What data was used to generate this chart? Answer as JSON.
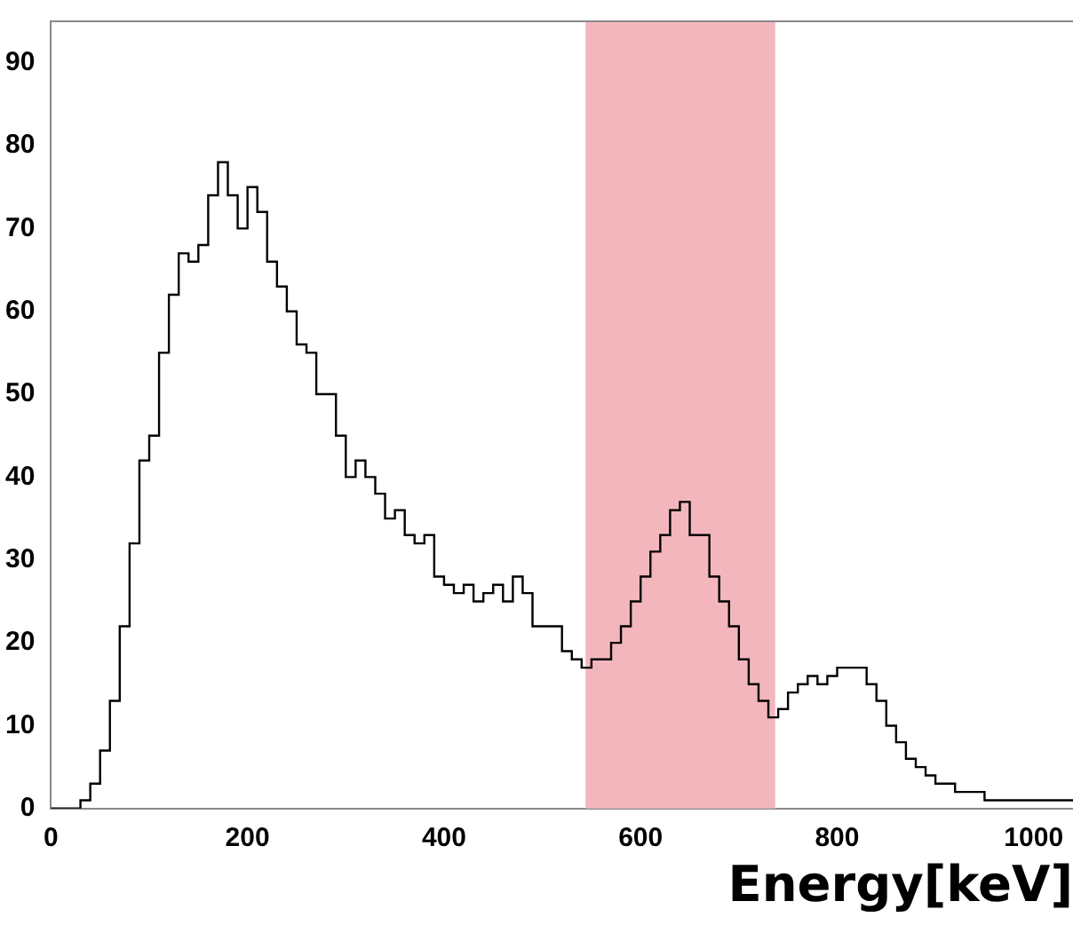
{
  "chart_data": {
    "type": "histogram",
    "xlabel": "Energy[keV]",
    "bins": [
      0,
      10,
      20,
      30,
      40,
      50,
      60,
      70,
      80,
      90,
      100,
      110,
      120,
      130,
      140,
      150,
      160,
      170,
      180,
      190,
      200,
      210,
      220,
      230,
      240,
      250,
      260,
      270,
      280,
      290,
      300,
      310,
      320,
      330,
      340,
      350,
      360,
      370,
      380,
      390,
      400,
      410,
      420,
      430,
      440,
      450,
      460,
      470,
      480,
      490,
      500,
      510,
      520,
      530,
      540,
      550,
      560,
      570,
      580,
      590,
      600,
      610,
      620,
      630,
      640,
      650,
      660,
      670,
      680,
      690,
      700,
      710,
      720,
      730,
      740,
      750,
      760,
      770,
      780,
      790,
      800,
      810,
      820,
      830,
      840,
      850,
      860,
      870,
      880,
      890,
      900,
      910,
      920,
      930,
      940,
      950,
      960,
      970,
      980,
      990,
      1000,
      1010,
      1020,
      1030,
      1040
    ],
    "values": [
      0,
      0,
      0,
      1,
      3,
      7,
      13,
      22,
      32,
      42,
      45,
      55,
      62,
      67,
      66,
      68,
      74,
      78,
      74,
      70,
      75,
      72,
      66,
      63,
      60,
      56,
      55,
      50,
      50,
      45,
      40,
      42,
      40,
      38,
      35,
      36,
      33,
      32,
      33,
      28,
      27,
      26,
      27,
      25,
      26,
      27,
      25,
      28,
      26,
      22,
      22,
      22,
      19,
      18,
      17,
      18,
      18,
      20,
      22,
      25,
      28,
      31,
      33,
      36,
      37,
      33,
      33,
      28,
      25,
      22,
      18,
      15,
      13,
      11,
      12,
      14,
      15,
      16,
      15,
      16,
      17,
      17,
      17,
      15,
      13,
      10,
      8,
      6,
      5,
      4,
      3,
      3,
      2,
      2,
      2,
      1,
      1,
      1,
      1,
      1,
      1,
      1,
      1,
      1
    ],
    "color": "#000000",
    "xlim": [
      0,
      1040
    ],
    "ylim": [
      0,
      95
    ],
    "xticks": [
      0,
      200,
      400,
      600,
      800,
      1000
    ],
    "yticks": [
      0,
      10,
      20,
      30,
      40,
      50,
      60,
      70,
      80,
      90
    ],
    "bands": [
      {
        "axis": "x",
        "from": 544,
        "to": 737,
        "color": "#f4b6bd"
      }
    ],
    "legend": false
  }
}
